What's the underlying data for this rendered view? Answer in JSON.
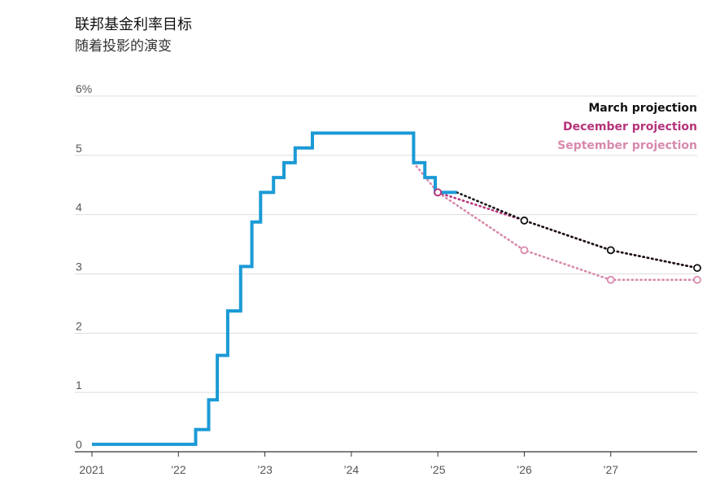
{
  "title": "联邦基金利率目标",
  "subtitle": "随着投影的演变",
  "colors": {
    "actual": "#1b9ad6",
    "march": "#111111",
    "december": "#b6327a",
    "september": "#d889ad",
    "grid": "#dddddd",
    "axis": "#333333"
  },
  "chart_data": {
    "type": "line",
    "title": "联邦基金利率目标",
    "subtitle": "随着投影的演变",
    "xlabel": "",
    "ylabel": "",
    "xlim": [
      2021.0,
      2028.0
    ],
    "ylim": [
      0,
      6
    ],
    "x_ticks": [
      {
        "value": 2021,
        "label": "2021"
      },
      {
        "value": 2022,
        "label": "’22"
      },
      {
        "value": 2023,
        "label": "’23"
      },
      {
        "value": 2024,
        "label": "’24"
      },
      {
        "value": 2025,
        "label": "’25"
      },
      {
        "value": 2026,
        "label": "’26"
      },
      {
        "value": 2027,
        "label": "’27"
      }
    ],
    "y_ticks": [
      {
        "value": 0,
        "label": "0"
      },
      {
        "value": 1,
        "label": "1"
      },
      {
        "value": 2,
        "label": "2"
      },
      {
        "value": 3,
        "label": "3"
      },
      {
        "value": 4,
        "label": "4"
      },
      {
        "value": 5,
        "label": "5"
      },
      {
        "value": 6,
        "label": "6%"
      }
    ],
    "grid": true,
    "legend_position": "top-right",
    "series": [
      {
        "name": "",
        "style": "step",
        "x": [
          2021.0,
          2022.2,
          2022.2,
          2022.35,
          2022.35,
          2022.45,
          2022.45,
          2022.57,
          2022.57,
          2022.72,
          2022.72,
          2022.85,
          2022.85,
          2022.95,
          2022.95,
          2023.1,
          2023.1,
          2023.22,
          2023.22,
          2023.35,
          2023.35,
          2023.55,
          2023.55,
          2024.72,
          2024.72,
          2024.85,
          2024.85,
          2024.97,
          2024.97,
          2025.22
        ],
        "y": [
          0.125,
          0.125,
          0.375,
          0.375,
          0.875,
          0.875,
          1.625,
          1.625,
          2.375,
          2.375,
          3.125,
          3.125,
          3.875,
          3.875,
          4.375,
          4.375,
          4.625,
          4.625,
          4.875,
          4.875,
          5.125,
          5.125,
          5.375,
          5.375,
          4.875,
          4.875,
          4.625,
          4.625,
          4.375,
          4.375
        ]
      },
      {
        "name": "March projection",
        "style": "dotted",
        "x": [
          2025.22,
          2026.0,
          2027.0,
          2028.0
        ],
        "y": [
          4.375,
          3.9,
          3.4,
          3.1
        ],
        "markers": [
          2026.0,
          2027.0,
          2028.0
        ]
      },
      {
        "name": "December projection",
        "style": "dotted",
        "x": [
          2025.0,
          2026.0,
          2027.0,
          2028.0
        ],
        "y": [
          4.375,
          3.9,
          3.4,
          3.1
        ],
        "markers": [
          2025.0
        ]
      },
      {
        "name": "September projection",
        "style": "dotted",
        "x": [
          2024.72,
          2025.0,
          2026.0,
          2027.0,
          2028.0
        ],
        "y": [
          4.875,
          4.375,
          3.4,
          2.9,
          2.9
        ],
        "markers": [
          2025.0,
          2026.0,
          2027.0,
          2028.0
        ]
      }
    ]
  }
}
